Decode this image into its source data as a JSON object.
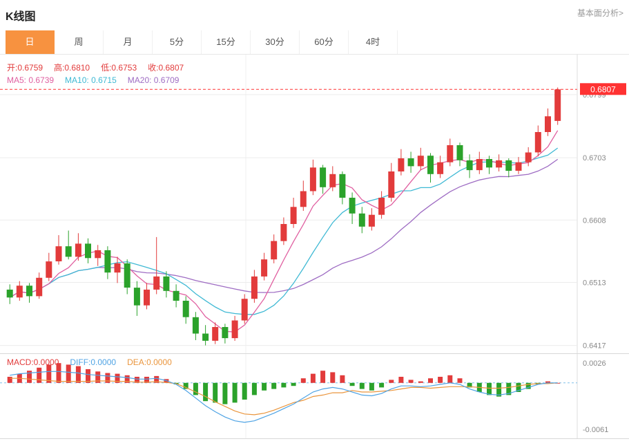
{
  "header": {
    "title": "K线图",
    "analysis_link": "基本面分析>"
  },
  "tabs": [
    "日",
    "周",
    "月",
    "5分",
    "15分",
    "30分",
    "60分",
    "4时"
  ],
  "active_tab": "日",
  "main_legend": {
    "open": "开:0.6759",
    "high": "高:0.6810",
    "low": "低:0.6753",
    "close": "收:0.6807",
    "ma5": "MA5: 0.6739",
    "ma10": "MA10: 0.6715",
    "ma20": "MA20: 0.6709"
  },
  "macd_legend": {
    "macd": "MACD:0.0000",
    "diff": "DIFF:0.0000",
    "dea": "DEA:0.0000"
  },
  "colors": {
    "up": "#e23b3b",
    "down": "#2ba22b",
    "ma5": "#e05fa0",
    "ma10": "#3fb9d4",
    "ma20": "#9e6cc3",
    "macd_diff": "#4ea3e4",
    "macd_dea": "#ea953c",
    "price_line": "#ff3232",
    "active_tab": "#f79240",
    "grid": "#ececec",
    "axis_text": "#888888"
  },
  "chart_data": {
    "type": "candlestick+macd",
    "main": {
      "ohlc": {
        "open": 0.6759,
        "high": 0.681,
        "low": 0.6753,
        "close": 0.6807
      },
      "ma_values": {
        "ma5": 0.6739,
        "ma10": 0.6715,
        "ma20": 0.6709
      },
      "current_price": 0.6807,
      "y_axis_labels": [
        0.6799,
        0.6703,
        0.6608,
        0.6513,
        0.6417
      ],
      "y_range": [
        0.6405,
        0.686
      ],
      "candles": [
        [
          0.6502,
          0.651,
          0.648,
          0.649
        ],
        [
          0.649,
          0.6515,
          0.6485,
          0.6508
        ],
        [
          0.6508,
          0.6512,
          0.6482,
          0.6492
        ],
        [
          0.6492,
          0.6528,
          0.6488,
          0.652
        ],
        [
          0.652,
          0.6558,
          0.6515,
          0.6545
        ],
        [
          0.6545,
          0.6585,
          0.654,
          0.6568
        ],
        [
          0.6568,
          0.6592,
          0.6548,
          0.6552
        ],
        [
          0.6552,
          0.6588,
          0.6546,
          0.6572
        ],
        [
          0.6572,
          0.658,
          0.6542,
          0.655
        ],
        [
          0.655,
          0.657,
          0.6538,
          0.6562
        ],
        [
          0.6562,
          0.6568,
          0.6518,
          0.6528
        ],
        [
          0.6528,
          0.6552,
          0.6512,
          0.6542
        ],
        [
          0.6542,
          0.6548,
          0.6495,
          0.6505
        ],
        [
          0.6505,
          0.6515,
          0.6462,
          0.6478
        ],
        [
          0.6478,
          0.6512,
          0.6472,
          0.6502
        ],
        [
          0.6502,
          0.6582,
          0.6495,
          0.6522
        ],
        [
          0.6522,
          0.653,
          0.649,
          0.65
        ],
        [
          0.65,
          0.651,
          0.6475,
          0.6485
        ],
        [
          0.6485,
          0.6492,
          0.645,
          0.646
        ],
        [
          0.646,
          0.6468,
          0.6425,
          0.6435
        ],
        [
          0.6435,
          0.6448,
          0.6417,
          0.6424
        ],
        [
          0.6424,
          0.6452,
          0.6419,
          0.6445
        ],
        [
          0.6445,
          0.645,
          0.642,
          0.6428
        ],
        [
          0.6428,
          0.6462,
          0.6424,
          0.6455
        ],
        [
          0.6455,
          0.6495,
          0.645,
          0.6488
        ],
        [
          0.6488,
          0.6532,
          0.6482,
          0.6522
        ],
        [
          0.6522,
          0.6558,
          0.6516,
          0.6548
        ],
        [
          0.6548,
          0.6586,
          0.6542,
          0.6576
        ],
        [
          0.6576,
          0.6612,
          0.657,
          0.6602
        ],
        [
          0.6602,
          0.6642,
          0.6596,
          0.6628
        ],
        [
          0.6628,
          0.6668,
          0.6622,
          0.6652
        ],
        [
          0.6652,
          0.67,
          0.6646,
          0.6688
        ],
        [
          0.6688,
          0.6692,
          0.6648,
          0.6658
        ],
        [
          0.6658,
          0.669,
          0.6652,
          0.6678
        ],
        [
          0.6678,
          0.6682,
          0.6632,
          0.6642
        ],
        [
          0.6642,
          0.665,
          0.6602,
          0.6618
        ],
        [
          0.6618,
          0.6628,
          0.6588,
          0.6598
        ],
        [
          0.6598,
          0.6626,
          0.6592,
          0.6616
        ],
        [
          0.6616,
          0.6652,
          0.661,
          0.6642
        ],
        [
          0.6642,
          0.6695,
          0.6636,
          0.6682
        ],
        [
          0.6682,
          0.6716,
          0.6676,
          0.6702
        ],
        [
          0.6702,
          0.6712,
          0.668,
          0.669
        ],
        [
          0.669,
          0.6718,
          0.6684,
          0.6706
        ],
        [
          0.6706,
          0.671,
          0.6665,
          0.6678
        ],
        [
          0.6678,
          0.6706,
          0.6672,
          0.6696
        ],
        [
          0.6696,
          0.6732,
          0.669,
          0.6722
        ],
        [
          0.6722,
          0.6726,
          0.669,
          0.6699
        ],
        [
          0.6699,
          0.6708,
          0.6672,
          0.6684
        ],
        [
          0.6684,
          0.6712,
          0.6678,
          0.6701
        ],
        [
          0.6701,
          0.6706,
          0.6678,
          0.6688
        ],
        [
          0.6688,
          0.6708,
          0.6682,
          0.6699
        ],
        [
          0.6699,
          0.6702,
          0.6673,
          0.6683
        ],
        [
          0.6683,
          0.6704,
          0.6678,
          0.6696
        ],
        [
          0.6696,
          0.6719,
          0.669,
          0.6711
        ],
        [
          0.6711,
          0.6752,
          0.6705,
          0.6742
        ],
        [
          0.6742,
          0.6778,
          0.6736,
          0.6766
        ],
        [
          0.6759,
          0.681,
          0.6753,
          0.6807
        ]
      ]
    },
    "macd": {
      "values": {
        "macd": 0.0,
        "diff": 0.0,
        "dea": 0.0
      },
      "y_axis_labels": [
        0.0026,
        -0.0061
      ],
      "y_range": [
        -0.0073,
        0.0038
      ],
      "hist": [
        0.0008,
        0.0012,
        0.0016,
        0.002,
        0.0024,
        0.0026,
        0.0024,
        0.0022,
        0.0018,
        0.0015,
        0.0013,
        0.0012,
        0.001,
        0.0008,
        0.0008,
        0.0009,
        0.0005,
        -0.0002,
        -0.0008,
        -0.0016,
        -0.0024,
        -0.0026,
        -0.0028,
        -0.0026,
        -0.0022,
        -0.0016,
        -0.001,
        -0.0008,
        -0.0006,
        -0.0004,
        0.0006,
        0.0012,
        0.0016,
        0.0014,
        0.001,
        -0.0004,
        -0.0008,
        -0.001,
        -0.0006,
        0.0004,
        0.0008,
        0.0004,
        0.0002,
        0.0006,
        0.0008,
        0.001,
        0.0006,
        -0.0006,
        -0.0012,
        -0.0016,
        -0.0018,
        -0.0016,
        -0.0012,
        -0.0008,
        -0.0002,
        0.0002,
        0.0
      ],
      "diff": [
        0.001,
        0.0012,
        0.0013,
        0.0014,
        0.0015,
        0.0015,
        0.0014,
        0.0013,
        0.0011,
        0.001,
        0.0009,
        0.0008,
        0.0007,
        0.0005,
        0.0005,
        0.0006,
        0.0003,
        -0.0002,
        -0.001,
        -0.002,
        -0.003,
        -0.0038,
        -0.0045,
        -0.005,
        -0.0052,
        -0.005,
        -0.0045,
        -0.004,
        -0.0034,
        -0.0028,
        -0.002,
        -0.0012,
        -0.0008,
        -0.0006,
        -0.0008,
        -0.0012,
        -0.0016,
        -0.0017,
        -0.0014,
        -0.0008,
        -0.0004,
        -0.0004,
        -0.0005,
        -0.0004,
        -0.0002,
        0.0,
        -0.0002,
        -0.0008,
        -0.0012,
        -0.0015,
        -0.0016,
        -0.0014,
        -0.001,
        -0.0006,
        -0.0002,
        0.0,
        0.0
      ]
    }
  }
}
